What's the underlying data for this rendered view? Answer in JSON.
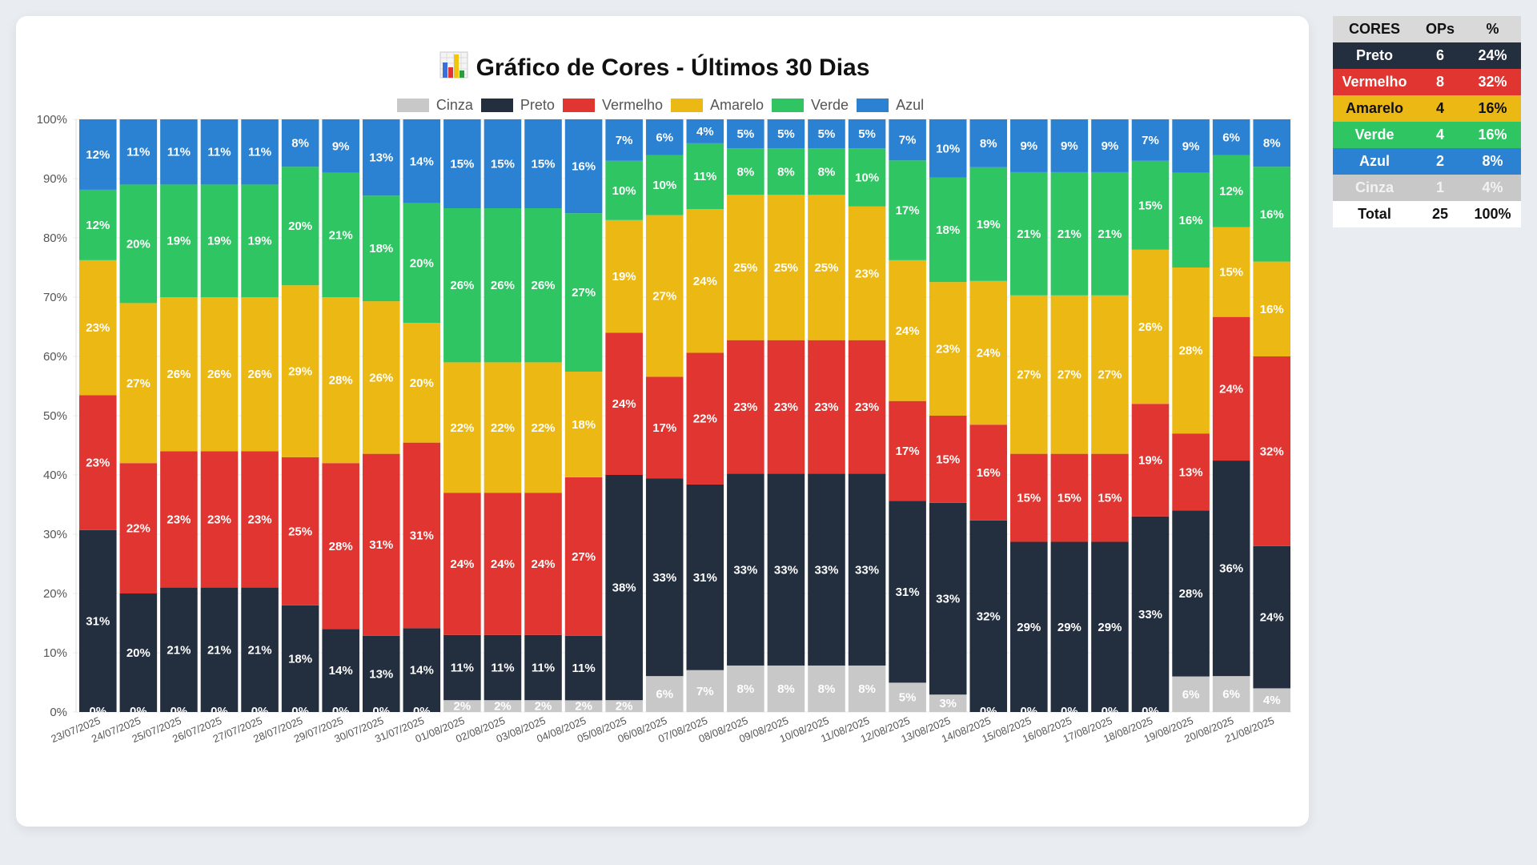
{
  "page": {
    "title": "Gráfico de Cores - Últimos 30 Dias",
    "title_icon": "bar-chart-icon"
  },
  "summary_table": {
    "headers": [
      "CORES",
      "OPs",
      "%"
    ],
    "rows": [
      {
        "name": "Preto",
        "ops": "6",
        "pct": "24%",
        "bg": "#232e3e",
        "fg": "#ffffff"
      },
      {
        "name": "Vermelho",
        "ops": "8",
        "pct": "32%",
        "bg": "#e03531",
        "fg": "#ffffff"
      },
      {
        "name": "Amarelo",
        "ops": "4",
        "pct": "16%",
        "bg": "#ecb814",
        "fg": "#111111"
      },
      {
        "name": "Verde",
        "ops": "4",
        "pct": "16%",
        "bg": "#2ec562",
        "fg": "#ffffff"
      },
      {
        "name": "Azul",
        "ops": "2",
        "pct": "8%",
        "bg": "#2b82d3",
        "fg": "#ffffff"
      },
      {
        "name": "Cinza",
        "ops": "1",
        "pct": "4%",
        "bg": "#c8c8c8",
        "fg": "#f2f2f2"
      }
    ],
    "total": {
      "name": "Total",
      "ops": "25",
      "pct": "100%"
    }
  },
  "chart_data": {
    "type": "bar",
    "stacked": true,
    "normalized": true,
    "title": "Gráfico de Cores - Últimos 30 Dias",
    "xlabel": "",
    "ylabel": "",
    "ylim": [
      0,
      100
    ],
    "yticks": [
      "0%",
      "10%",
      "20%",
      "30%",
      "40%",
      "50%",
      "60%",
      "70%",
      "80%",
      "90%",
      "100%"
    ],
    "legend_position": "top-center",
    "grid": true,
    "categories": [
      "23/07/2025",
      "24/07/2025",
      "25/07/2025",
      "26/07/2025",
      "27/07/2025",
      "28/07/2025",
      "29/07/2025",
      "30/07/2025",
      "31/07/2025",
      "01/08/2025",
      "02/08/2025",
      "03/08/2025",
      "04/08/2025",
      "05/08/2025",
      "06/08/2025",
      "07/08/2025",
      "08/08/2025",
      "09/08/2025",
      "10/08/2025",
      "11/08/2025",
      "12/08/2025",
      "13/08/2025",
      "14/08/2025",
      "15/08/2025",
      "16/08/2025",
      "17/08/2025",
      "18/08/2025",
      "19/08/2025",
      "20/08/2025",
      "21/08/2025"
    ],
    "series": [
      {
        "name": "Cinza",
        "color": "#c8c8c8",
        "values": [
          0,
          0,
          0,
          0,
          0,
          0,
          0,
          0,
          0,
          2,
          2,
          2,
          2,
          2,
          6,
          7,
          8,
          8,
          8,
          8,
          5,
          3,
          0,
          0,
          0,
          0,
          0,
          6,
          6,
          4
        ]
      },
      {
        "name": "Preto",
        "color": "#232e3e",
        "values": [
          31,
          20,
          21,
          21,
          21,
          18,
          14,
          13,
          14,
          11,
          11,
          11,
          11,
          38,
          33,
          31,
          33,
          33,
          33,
          33,
          31,
          33,
          32,
          29,
          29,
          29,
          33,
          28,
          36,
          24
        ]
      },
      {
        "name": "Vermelho",
        "color": "#e03531",
        "values": [
          23,
          22,
          23,
          23,
          23,
          25,
          28,
          31,
          31,
          24,
          24,
          24,
          27,
          24,
          17,
          22,
          23,
          23,
          23,
          23,
          17,
          15,
          16,
          15,
          15,
          15,
          19,
          13,
          24,
          32
        ]
      },
      {
        "name": "Amarelo",
        "color": "#ecb814",
        "values": [
          23,
          27,
          26,
          26,
          26,
          29,
          28,
          26,
          20,
          22,
          22,
          22,
          18,
          19,
          27,
          24,
          25,
          25,
          25,
          23,
          24,
          23,
          24,
          27,
          27,
          27,
          26,
          28,
          15,
          16
        ]
      },
      {
        "name": "Verde",
        "color": "#2ec562",
        "values": [
          12,
          20,
          19,
          19,
          19,
          20,
          21,
          18,
          20,
          26,
          26,
          26,
          27,
          10,
          10,
          11,
          8,
          8,
          8,
          10,
          17,
          18,
          19,
          21,
          21,
          21,
          15,
          16,
          12,
          16
        ]
      },
      {
        "name": "Azul",
        "color": "#2b82d3",
        "values": [
          12,
          11,
          11,
          11,
          11,
          8,
          9,
          13,
          14,
          15,
          15,
          15,
          16,
          7,
          6,
          4,
          5,
          5,
          5,
          5,
          7,
          10,
          8,
          9,
          9,
          9,
          7,
          9,
          6,
          8
        ]
      }
    ]
  }
}
